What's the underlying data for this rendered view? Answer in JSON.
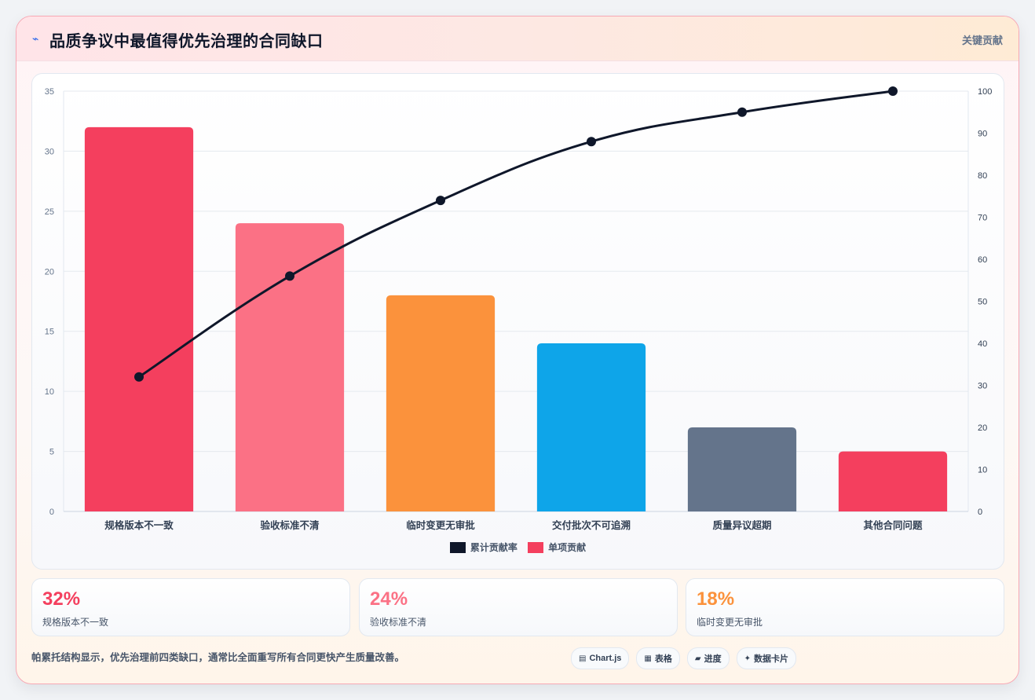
{
  "header": {
    "icon": "lightning-icon",
    "title": "品质争议中最值得优先治理的合同缺口",
    "right_label": "关键贡献"
  },
  "chart_data": {
    "type": "bar",
    "categories": [
      "规格版本不一致",
      "验收标准不清",
      "临时变更无审批",
      "交付批次不可追溯",
      "质量异议超期",
      "其他合同问题"
    ],
    "series": [
      {
        "name": "单项贡献",
        "type": "bar",
        "axis": "left",
        "values": [
          32,
          24,
          18,
          14,
          7,
          5
        ],
        "colors": [
          "#f43f5e",
          "#fb7185",
          "#fb923c",
          "#0ea5e9",
          "#64748b",
          "#f43f5e"
        ]
      },
      {
        "name": "累计贡献率",
        "type": "line",
        "axis": "right",
        "values": [
          32,
          56,
          74,
          88,
          95,
          100
        ],
        "color": "#0f172a"
      }
    ],
    "y_left": {
      "min": 0,
      "max": 35,
      "ticks": [
        0,
        5,
        10,
        15,
        20,
        25,
        30,
        35
      ]
    },
    "y_right": {
      "min": 0,
      "max": 100,
      "ticks": [
        0,
        10,
        20,
        30,
        40,
        50,
        60,
        70,
        80,
        90,
        100
      ]
    },
    "grid": true,
    "legend": {
      "placement": "bottom-center",
      "items": [
        {
          "label": "累计贡献率",
          "color": "#0f172a"
        },
        {
          "label": "单项贡献",
          "color": "#f43f5e"
        }
      ]
    }
  },
  "stats": [
    {
      "value": "32%",
      "label": "规格版本不一致",
      "color": "#f43f5e"
    },
    {
      "value": "24%",
      "label": "验收标准不清",
      "color": "#fb7185"
    },
    {
      "value": "18%",
      "label": "临时变更无审批",
      "color": "#fb923c"
    }
  ],
  "footer": {
    "note": "帕累托结构显示，优先治理前四类缺口，通常比全面重写所有合同更快产生质量改善。",
    "chips": [
      {
        "icon": "chart-icon",
        "glyph": "▤",
        "label": "Chart.js"
      },
      {
        "icon": "table-icon",
        "glyph": "▦",
        "label": "表格"
      },
      {
        "icon": "progress-icon",
        "glyph": "▰",
        "label": "进度"
      },
      {
        "icon": "sparkle-icon",
        "glyph": "✦",
        "label": "数据卡片"
      }
    ]
  }
}
